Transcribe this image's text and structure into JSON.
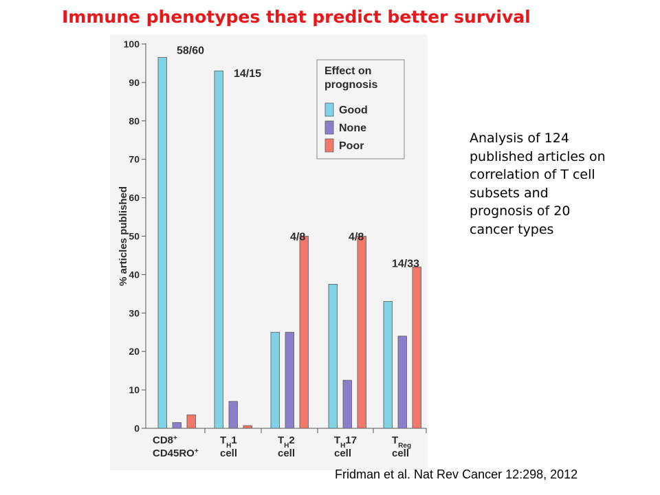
{
  "slide": {
    "title": "Immune phenotypes that predict better survival",
    "note_lines": [
      "Analysis of 124",
      "published articles on",
      "correlation of T cell",
      "subsets  and",
      "prognosis of 20",
      "cancer types"
    ],
    "citation": "Fridman et al. Nat Rev Cancer 12:298, 2012"
  },
  "chart_data": {
    "type": "bar",
    "title": "",
    "ylabel": "% articles published",
    "xlabel": "",
    "ylim": [
      0,
      100
    ],
    "yticks": [
      0,
      10,
      20,
      30,
      40,
      50,
      60,
      70,
      80,
      90,
      100
    ],
    "grid": false,
    "legend_position": "top-right",
    "legend_title": [
      "Effect on",
      "prognosis"
    ],
    "categories": [
      {
        "line1": "CD8",
        "line1_sup": "+",
        "line2": "CD45RO",
        "line2_sup": "+",
        "line2_sub": ""
      },
      {
        "line1": "T",
        "line1_sub": "H",
        "line1_tail": "1",
        "line2": "cell"
      },
      {
        "line1": "T",
        "line1_sub": "H",
        "line1_tail": "2",
        "line2": "cell"
      },
      {
        "line1": "T",
        "line1_sub": "H",
        "line1_tail": "17",
        "line2": "cell"
      },
      {
        "line1": "T",
        "line1_sub": "Reg",
        "line1_tail": "",
        "line2": "cell"
      }
    ],
    "series": [
      {
        "name": "Good",
        "color": "#7fd3e6",
        "values": [
          96.5,
          93,
          25,
          37.5,
          33
        ]
      },
      {
        "name": "None",
        "color": "#8a7fc8",
        "values": [
          1.5,
          7,
          25,
          12.5,
          24
        ]
      },
      {
        "name": "Poor",
        "color": "#f3786a",
        "values": [
          3.5,
          0.7,
          50,
          50,
          42
        ]
      }
    ],
    "annotations": [
      "58/60",
      "14/15",
      "4/8",
      "4/8",
      "14/33"
    ],
    "annotation_values": [
      98.5,
      92.5,
      50,
      50,
      43
    ]
  }
}
